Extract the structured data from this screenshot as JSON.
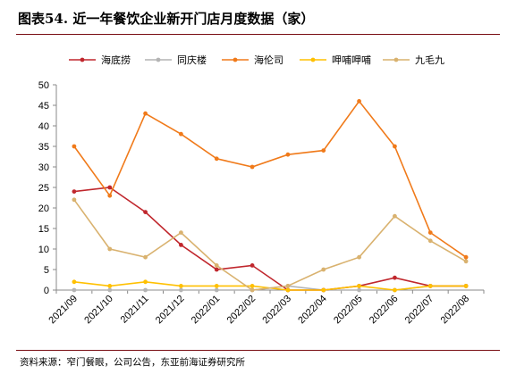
{
  "title": "图表54.  近一年餐饮企业新开门店月度数据（家）",
  "source": "资料来源：窄门餐眼，公司公告，东亚前海证券研究所",
  "chart_data": {
    "type": "line",
    "title": "",
    "xlabel": "",
    "ylabel": "",
    "ylim": [
      0,
      50
    ],
    "yticks": [
      0,
      5,
      10,
      15,
      20,
      25,
      30,
      35,
      40,
      45,
      50
    ],
    "grid": false,
    "legend_position": "top",
    "categories": [
      "2021/09",
      "2021/10",
      "2021/11",
      "2021/12",
      "2022/01",
      "2022/02",
      "2022/03",
      "2022/04",
      "2022/05",
      "2022/06",
      "2022/07",
      "2022/08"
    ],
    "series": [
      {
        "name": "海底捞",
        "color": "#c0272d",
        "values": [
          24,
          25,
          19,
          11,
          5,
          6,
          0,
          0,
          1,
          3,
          1,
          1
        ]
      },
      {
        "name": "同庆楼",
        "color": "#b4b4b4",
        "values": [
          0,
          0,
          0,
          0,
          0,
          0,
          1,
          0,
          0,
          0,
          1,
          1
        ]
      },
      {
        "name": "海伦司",
        "color": "#f07a1a",
        "values": [
          35,
          23,
          43,
          38,
          32,
          30,
          33,
          34,
          46,
          35,
          14,
          8
        ]
      },
      {
        "name": "呷哺呷哺",
        "color": "#ffc000",
        "values": [
          2,
          1,
          2,
          1,
          1,
          1,
          0,
          0,
          1,
          0,
          1,
          1
        ]
      },
      {
        "name": "九毛九",
        "color": "#d9b26f",
        "values": [
          22,
          10,
          8,
          14,
          6,
          0,
          1,
          5,
          8,
          18,
          12,
          7
        ]
      }
    ]
  }
}
